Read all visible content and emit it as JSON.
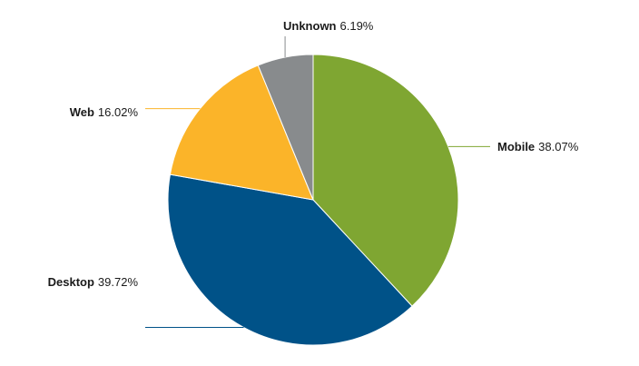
{
  "chart_data": {
    "type": "pie",
    "title": "",
    "slices": [
      {
        "name": "Mobile",
        "value": 38.07,
        "label": "38.07%",
        "color": "#7fa632"
      },
      {
        "name": "Desktop",
        "value": 39.72,
        "label": "39.72%",
        "color": "#005288"
      },
      {
        "name": "Web",
        "value": 16.02,
        "label": "16.02%",
        "color": "#fbb429"
      },
      {
        "name": "Unknown",
        "value": 6.19,
        "label": "6.19%",
        "color": "#888b8d"
      }
    ],
    "start_angle": "12 o'clock",
    "direction": "clockwise",
    "legend": "none",
    "labels": "outside with leader lines"
  }
}
